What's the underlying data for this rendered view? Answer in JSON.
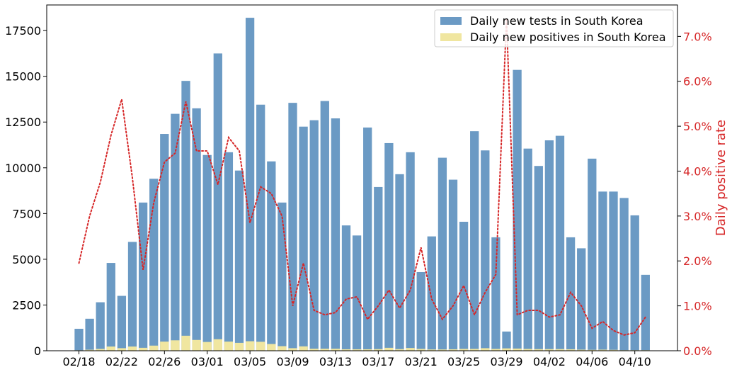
{
  "chart_data": {
    "type": "bar",
    "dates": [
      "02/18",
      "02/19",
      "02/20",
      "02/21",
      "02/22",
      "02/23",
      "02/24",
      "02/25",
      "02/26",
      "02/27",
      "02/28",
      "02/29",
      "03/01",
      "03/02",
      "03/03",
      "03/04",
      "03/05",
      "03/06",
      "03/07",
      "03/08",
      "03/09",
      "03/10",
      "03/11",
      "03/12",
      "03/13",
      "03/14",
      "03/15",
      "03/16",
      "03/17",
      "03/18",
      "03/19",
      "03/20",
      "03/21",
      "03/22",
      "03/23",
      "03/24",
      "03/25",
      "03/26",
      "03/27",
      "03/28",
      "03/29",
      "03/30",
      "03/31",
      "04/01",
      "04/02",
      "04/03",
      "04/04",
      "04/05",
      "04/06",
      "04/07",
      "04/08",
      "04/09",
      "04/10",
      "04/11"
    ],
    "xtick_labels": [
      "02/18",
      "02/22",
      "02/26",
      "03/01",
      "03/05",
      "03/09",
      "03/13",
      "03/17",
      "03/21",
      "03/25",
      "03/29",
      "04/02",
      "04/06",
      "04/10"
    ],
    "series": [
      {
        "name": "Daily new tests in South Korea",
        "color": "#6b9ac4",
        "axis": "left",
        "values": [
          1200,
          1750,
          2650,
          4800,
          3000,
          5950,
          8100,
          9400,
          11850,
          12950,
          14750,
          13250,
          10700,
          16250,
          10850,
          9850,
          18200,
          13450,
          10350,
          8100,
          13550,
          12250,
          12600,
          13650,
          12700,
          6850,
          6300,
          12200,
          8950,
          11350,
          9650,
          10850,
          4300,
          6250,
          10550,
          9350,
          7050,
          12000,
          10950,
          6200,
          1050,
          15350,
          11050,
          10100,
          11500,
          11750,
          6200,
          5600,
          10500,
          8700,
          8700,
          8350,
          7400,
          4150
        ]
      },
      {
        "name": "Daily new positives in South Korea",
        "color": "#f0e6a0",
        "axis": "left",
        "values": [
          25,
          55,
          100,
          230,
          140,
          230,
          160,
          280,
          500,
          570,
          820,
          590,
          480,
          630,
          500,
          430,
          520,
          490,
          370,
          250,
          140,
          240,
          110,
          110,
          110,
          80,
          80,
          80,
          90,
          160,
          90,
          150,
          100,
          70,
          70,
          80,
          100,
          100,
          140,
          100,
          130,
          120,
          100,
          90,
          90,
          90,
          80,
          60,
          50,
          60,
          50,
          30,
          30,
          30
        ]
      },
      {
        "name": "Daily positive rate",
        "color": "#d62728",
        "axis": "right",
        "style": "dotted",
        "values": [
          1.95,
          3.0,
          3.75,
          4.8,
          5.6,
          3.85,
          1.8,
          3.3,
          4.2,
          4.4,
          5.55,
          4.45,
          4.45,
          3.7,
          4.75,
          4.45,
          2.85,
          3.65,
          3.5,
          3.0,
          1.0,
          1.95,
          0.9,
          0.8,
          0.85,
          1.15,
          1.2,
          0.7,
          1.0,
          1.35,
          0.95,
          1.35,
          2.3,
          1.15,
          0.7,
          1.0,
          1.45,
          0.8,
          1.3,
          1.7,
          7.4,
          0.8,
          0.9,
          0.9,
          0.75,
          0.8,
          1.3,
          1.0,
          0.5,
          0.65,
          0.45,
          0.35,
          0.4,
          0.75
        ]
      }
    ],
    "left_ylim": [
      0,
      18900
    ],
    "left_yticks": [
      0,
      2500,
      5000,
      7500,
      10000,
      12500,
      15000,
      17500
    ],
    "right_ylim": [
      0,
      7.7
    ],
    "right_yticks": [
      0,
      1,
      2,
      3,
      4,
      5,
      6,
      7
    ],
    "right_ytick_labels": [
      "0.0%",
      "1.0%",
      "2.0%",
      "3.0%",
      "4.0%",
      "5.0%",
      "6.0%",
      "7.0%"
    ],
    "right_ylabel": "Daily positive rate",
    "legend_placement": "top-right",
    "grid": false
  }
}
